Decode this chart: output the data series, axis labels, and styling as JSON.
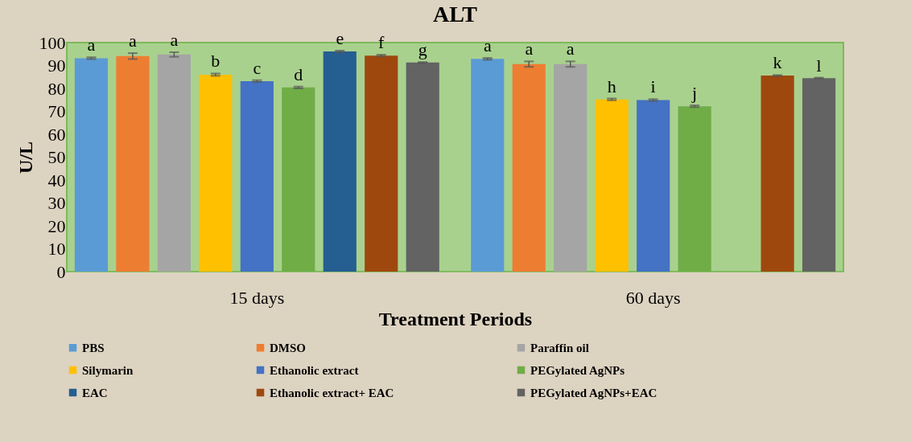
{
  "chart_data": {
    "type": "bar",
    "title": "ALT",
    "xlabel": "Treatment Periods",
    "ylabel": "U/L",
    "categories": [
      "15 days",
      "60 days"
    ],
    "ylim": [
      0,
      100
    ],
    "yticks": [
      0,
      10,
      20,
      30,
      40,
      50,
      60,
      70,
      80,
      90,
      100
    ],
    "grid": false,
    "legend": "bottom",
    "series": [
      {
        "name": "PBS",
        "color": "#5b9bd5",
        "values": [
          93.2,
          92.9
        ],
        "errors": [
          0.4,
          0.4
        ],
        "value_labels": [
          "a",
          "a"
        ]
      },
      {
        "name": "DMSO",
        "color": "#ed7d31",
        "values": [
          94.1,
          90.6
        ],
        "errors": [
          1.3,
          1.2
        ],
        "value_labels": [
          "a",
          "a"
        ]
      },
      {
        "name": "Paraffin oil",
        "color": "#a5a5a5",
        "values": [
          94.8,
          90.6
        ],
        "errors": [
          1.0,
          1.2
        ],
        "value_labels": [
          "a",
          "a"
        ]
      },
      {
        "name": "Silymarin",
        "color": "#ffc000",
        "values": [
          86.0,
          75.2
        ],
        "errors": [
          0.5,
          0.4
        ],
        "value_labels": [
          "b",
          "h"
        ]
      },
      {
        "name": "Ethanolic extract",
        "color": "#4472c4",
        "values": [
          83.2,
          74.9
        ],
        "errors": [
          0.4,
          0.4
        ],
        "value_labels": [
          "c",
          "i"
        ]
      },
      {
        "name": "PEGylated AgNPs",
        "color": "#70ad47",
        "values": [
          80.4,
          72.2
        ],
        "errors": [
          0.4,
          0.4
        ],
        "value_labels": [
          "d",
          "j"
        ]
      },
      {
        "name": "EAC",
        "color": "#255e91",
        "values": [
          96.1,
          null
        ],
        "errors": [
          0.4,
          null
        ],
        "value_labels": [
          "e",
          null
        ]
      },
      {
        "name": "Ethanolic extract+ EAC",
        "color": "#9e480e",
        "values": [
          94.3,
          85.6
        ],
        "errors": [
          0.4,
          0.2
        ],
        "value_labels": [
          "f",
          "k"
        ]
      },
      {
        "name": "PEGylated AgNPs+EAC",
        "color": "#636363",
        "values": [
          91.3,
          84.5
        ],
        "errors": [
          0.2,
          0.2
        ],
        "value_labels": [
          "g",
          "l"
        ]
      }
    ]
  }
}
